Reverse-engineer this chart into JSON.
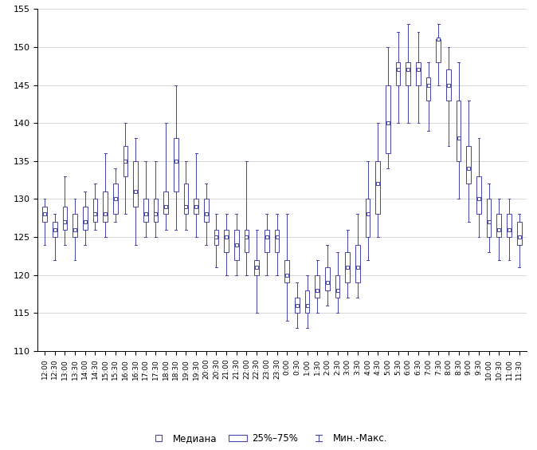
{
  "labels": [
    "12:00",
    "12:30",
    "13:00",
    "13:30",
    "14:00",
    "14:30",
    "15:00",
    "15:30",
    "16:00",
    "16:30",
    "17:00",
    "17:30",
    "18:00",
    "18:30",
    "19:00",
    "19:30",
    "20:00",
    "20:30",
    "21:00",
    "21:30",
    "22:00",
    "22:30",
    "23:00",
    "23:30",
    "0:00",
    "0:30",
    "1:00",
    "1:30",
    "2:00",
    "2:30",
    "3:00",
    "3:30",
    "4:00",
    "4:30",
    "5:00",
    "5:30",
    "6:00",
    "6:30",
    "7:00",
    "7:30",
    "8:00",
    "8:30",
    "9:00",
    "9:30",
    "10:00",
    "10:30",
    "11:00",
    "11:30"
  ],
  "medians": [
    128,
    126,
    127,
    126,
    127,
    128,
    128,
    130,
    135,
    131,
    128,
    128,
    129,
    135,
    129,
    129,
    128,
    125,
    125,
    124,
    125,
    121,
    125,
    125,
    120,
    116,
    116,
    118,
    119,
    118,
    121,
    121,
    128,
    132,
    140,
    147,
    147,
    147,
    145,
    151,
    145,
    138,
    134,
    130,
    127,
    126,
    126,
    125
  ],
  "q1": [
    127,
    125,
    126,
    125,
    126,
    127,
    127,
    128,
    133,
    129,
    127,
    127,
    128,
    131,
    128,
    128,
    127,
    124,
    123,
    122,
    123,
    120,
    123,
    123,
    119,
    115,
    115,
    117,
    118,
    117,
    119,
    119,
    125,
    128,
    136,
    145,
    145,
    145,
    143,
    148,
    143,
    135,
    132,
    128,
    125,
    125,
    125,
    124
  ],
  "q3": [
    129,
    127,
    129,
    128,
    129,
    130,
    131,
    132,
    137,
    135,
    130,
    130,
    131,
    138,
    132,
    130,
    130,
    126,
    126,
    126,
    126,
    122,
    126,
    126,
    122,
    117,
    118,
    120,
    121,
    120,
    123,
    124,
    130,
    135,
    145,
    148,
    148,
    148,
    146,
    151,
    147,
    143,
    137,
    133,
    130,
    128,
    128,
    127
  ],
  "whisker_low": [
    124,
    122,
    124,
    122,
    124,
    126,
    125,
    127,
    128,
    124,
    125,
    125,
    126,
    126,
    126,
    125,
    124,
    121,
    120,
    120,
    120,
    115,
    120,
    120,
    114,
    113,
    113,
    115,
    116,
    115,
    117,
    117,
    122,
    125,
    134,
    140,
    140,
    140,
    139,
    145,
    137,
    130,
    127,
    125,
    123,
    122,
    122,
    121
  ],
  "whisker_high": [
    130,
    128,
    133,
    130,
    131,
    132,
    136,
    134,
    140,
    138,
    135,
    135,
    140,
    145,
    135,
    136,
    132,
    128,
    128,
    128,
    135,
    126,
    128,
    128,
    128,
    119,
    120,
    122,
    124,
    123,
    126,
    128,
    135,
    140,
    150,
    152,
    153,
    152,
    148,
    153,
    150,
    148,
    143,
    138,
    132,
    130,
    130,
    128
  ],
  "box_color": "#4444aa",
  "box_facecolor": "#ffffff",
  "ylim": [
    110,
    155
  ],
  "yticks": [
    110,
    115,
    120,
    125,
    130,
    135,
    140,
    145,
    150,
    155
  ],
  "background_color": "#ffffff",
  "grid_color": "#d0d0d0",
  "legend_median_label": "Медиана",
  "legend_iqr_label": "25%–75%",
  "legend_minmax_label": "Мин.-Макс."
}
